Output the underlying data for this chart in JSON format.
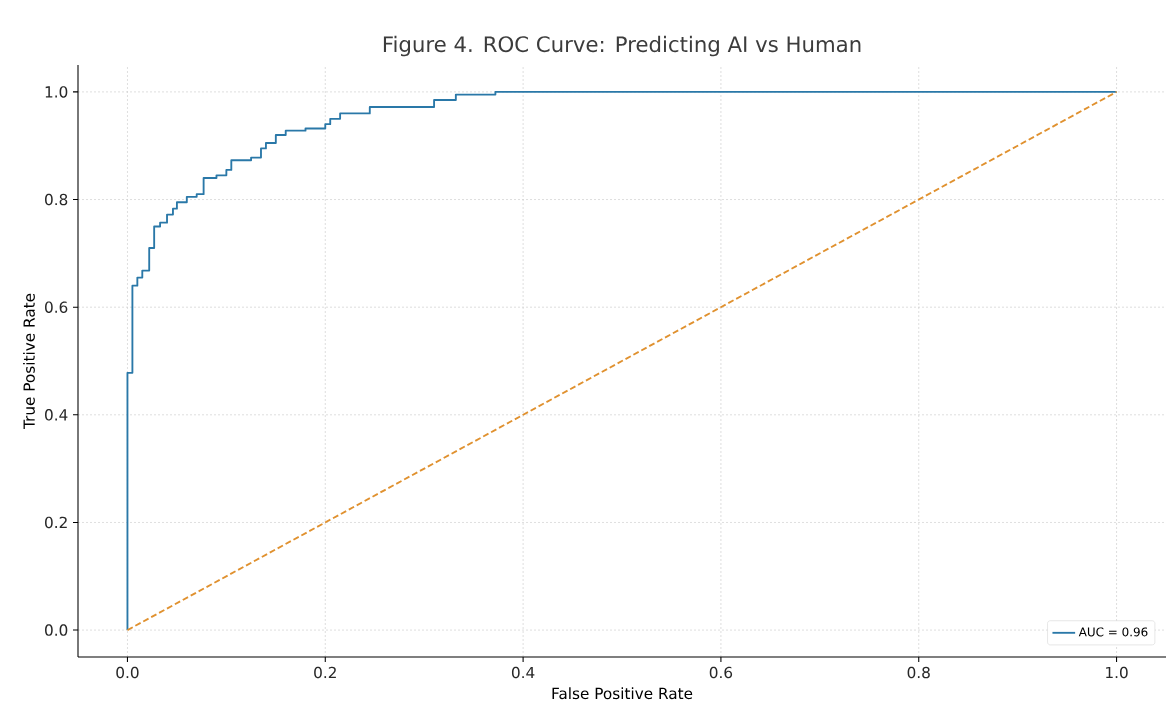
{
  "chart_data": {
    "type": "line",
    "title": "Figure 4. ROC Curve: Predicting AI vs Human",
    "xlabel": "False Positive Rate",
    "ylabel": "True Positive Rate",
    "series": [
      {
        "name": "AUC = 0.96",
        "color": "#2a78a8",
        "line_style": "solid",
        "x": [
          0,
          0,
          0.005,
          0.005,
          0.01,
          0.01,
          0.015,
          0.015,
          0.022,
          0.022,
          0.027,
          0.027,
          0.033,
          0.033,
          0.04,
          0.04,
          0.046,
          0.046,
          0.05,
          0.05,
          0.06,
          0.06,
          0.07,
          0.07,
          0.077,
          0.077,
          0.09,
          0.09,
          0.1,
          0.1,
          0.105,
          0.105,
          0.125,
          0.125,
          0.135,
          0.135,
          0.14,
          0.14,
          0.15,
          0.15,
          0.16,
          0.16,
          0.18,
          0.18,
          0.2,
          0.2,
          0.205,
          0.205,
          0.215,
          0.215,
          0.245,
          0.245,
          0.31,
          0.31,
          0.332,
          0.332,
          0.372,
          0.372,
          1
        ],
        "values": [
          0,
          0.478,
          0.478,
          0.64,
          0.64,
          0.655,
          0.655,
          0.668,
          0.668,
          0.71,
          0.71,
          0.75,
          0.75,
          0.757,
          0.757,
          0.772,
          0.772,
          0.783,
          0.783,
          0.795,
          0.795,
          0.805,
          0.805,
          0.81,
          0.81,
          0.84,
          0.84,
          0.845,
          0.845,
          0.855,
          0.855,
          0.873,
          0.873,
          0.878,
          0.878,
          0.895,
          0.895,
          0.905,
          0.905,
          0.92,
          0.92,
          0.928,
          0.928,
          0.932,
          0.932,
          0.94,
          0.94,
          0.95,
          0.95,
          0.96,
          0.96,
          0.972,
          0.972,
          0.985,
          0.985,
          0.995,
          0.995,
          1,
          1
        ]
      },
      {
        "color": "#e0912f",
        "line_style": "dashed",
        "x": [
          0,
          1
        ],
        "values": [
          0,
          1
        ]
      }
    ],
    "xlim": [
      -0.05,
      1.05
    ],
    "ylim": [
      -0.05,
      1.05
    ],
    "xticks": [
      {
        "value": 0,
        "label": "0.0"
      },
      0.2,
      0.4,
      0.6,
      0.8,
      {
        "value": 1,
        "label": "1.0"
      }
    ],
    "yticks": [
      {
        "value": 0,
        "label": "0.0"
      },
      0.2,
      0.4,
      0.6,
      0.8,
      {
        "value": 1,
        "label": "1.0"
      }
    ],
    "grid": true,
    "legend": "bottom right"
  }
}
